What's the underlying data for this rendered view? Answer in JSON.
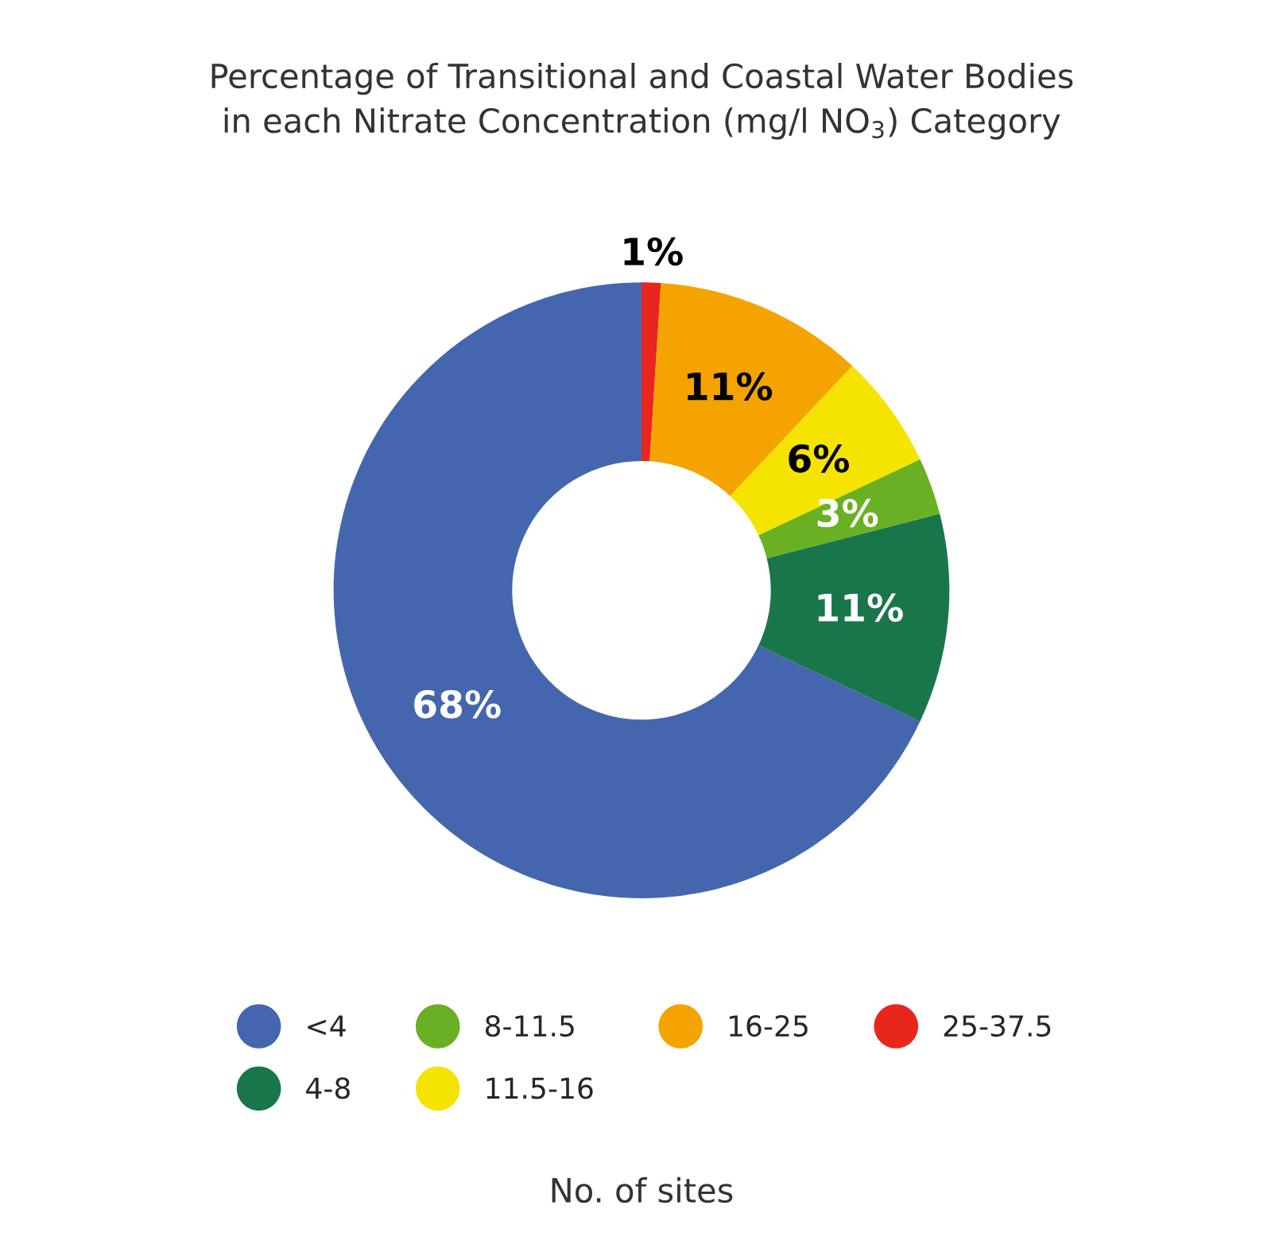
{
  "chart_data": {
    "type": "donut",
    "title": "Percentage of Transitional and Coastal Water Bodies\nin each Nitrate Concentration (mg/l NO$_{3}$) Category",
    "categories": [
      "<4",
      "4-8",
      "8-11.5",
      "11.5-16",
      "16-25",
      "25-37.5"
    ],
    "values": [
      68,
      11,
      3,
      6,
      11,
      1
    ],
    "value_labels": [
      "68%",
      "11%",
      "3%",
      "6%",
      "11%",
      "1%"
    ],
    "colors": [
      "#4466ae",
      "#19764a",
      "#6ab023",
      "#f5e400",
      "#f5a300",
      "#e8261d"
    ],
    "legend": "bottom",
    "annotations": [
      "No. of sites"
    ]
  }
}
